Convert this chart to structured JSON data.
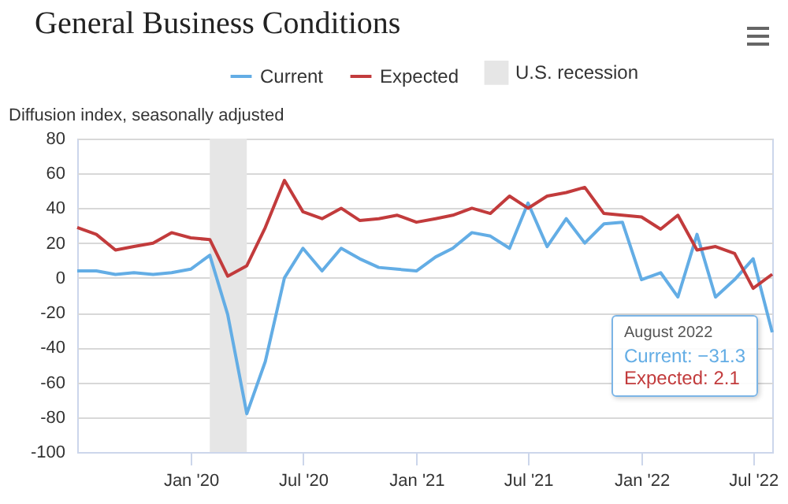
{
  "chart_data": {
    "type": "line",
    "title": "General Business Conditions",
    "ylabel": "Diffusion index, seasonally adjusted",
    "x": [
      "2019-07",
      "2019-08",
      "2019-09",
      "2019-10",
      "2019-11",
      "2019-12",
      "2020-01",
      "2020-02",
      "2020-03",
      "2020-04",
      "2020-05",
      "2020-06",
      "2020-07",
      "2020-08",
      "2020-09",
      "2020-10",
      "2020-11",
      "2020-12",
      "2021-01",
      "2021-02",
      "2021-03",
      "2021-04",
      "2021-05",
      "2021-06",
      "2021-07",
      "2021-08",
      "2021-09",
      "2021-10",
      "2021-11",
      "2021-12",
      "2022-01",
      "2022-02",
      "2022-03",
      "2022-04",
      "2022-05",
      "2022-06",
      "2022-07",
      "2022-08"
    ],
    "series": [
      {
        "name": "Current",
        "color": "#63ade5",
        "values": [
          4,
          4,
          2,
          3,
          2,
          3,
          5,
          13,
          -21,
          -78,
          -48,
          0,
          17,
          4,
          17,
          11,
          6,
          5,
          4,
          12,
          17,
          26,
          24,
          17,
          43,
          18,
          34,
          20,
          31,
          32,
          -1,
          3,
          -11,
          25,
          -11,
          -1,
          11,
          -31.3
        ]
      },
      {
        "name": "Expected",
        "color": "#c23b3c",
        "values": [
          29,
          25,
          16,
          18,
          20,
          26,
          23,
          22,
          1,
          7,
          29,
          56,
          38,
          34,
          40,
          33,
          34,
          36,
          32,
          34,
          36,
          40,
          37,
          47,
          40,
          47,
          49,
          52,
          37,
          36,
          35,
          28,
          36,
          16,
          18,
          14,
          -6,
          2.1
        ]
      }
    ],
    "bands": [
      {
        "axis": "x",
        "from": "2020-02",
        "to": "2020-04",
        "label": "U.S. recession",
        "color": "#e6e6e6"
      }
    ],
    "xlim": [
      "2019-07",
      "2022-08"
    ],
    "xticks": [
      {
        "value": "2020-01",
        "label": "Jan '20"
      },
      {
        "value": "2020-07",
        "label": "Jul '20"
      },
      {
        "value": "2021-01",
        "label": "Jan '21"
      },
      {
        "value": "2021-07",
        "label": "Jul '21"
      },
      {
        "value": "2022-01",
        "label": "Jan '22"
      },
      {
        "value": "2022-07",
        "label": "Jul '22"
      }
    ],
    "ylim": [
      -100,
      80
    ],
    "yticks": [
      -100,
      -80,
      -60,
      -40,
      -20,
      0,
      20,
      40,
      60,
      80
    ],
    "grid": "y",
    "legend": "top",
    "annotations": [
      "August 2022",
      "Current: −31.3",
      "Expected: 2.1"
    ]
  }
}
